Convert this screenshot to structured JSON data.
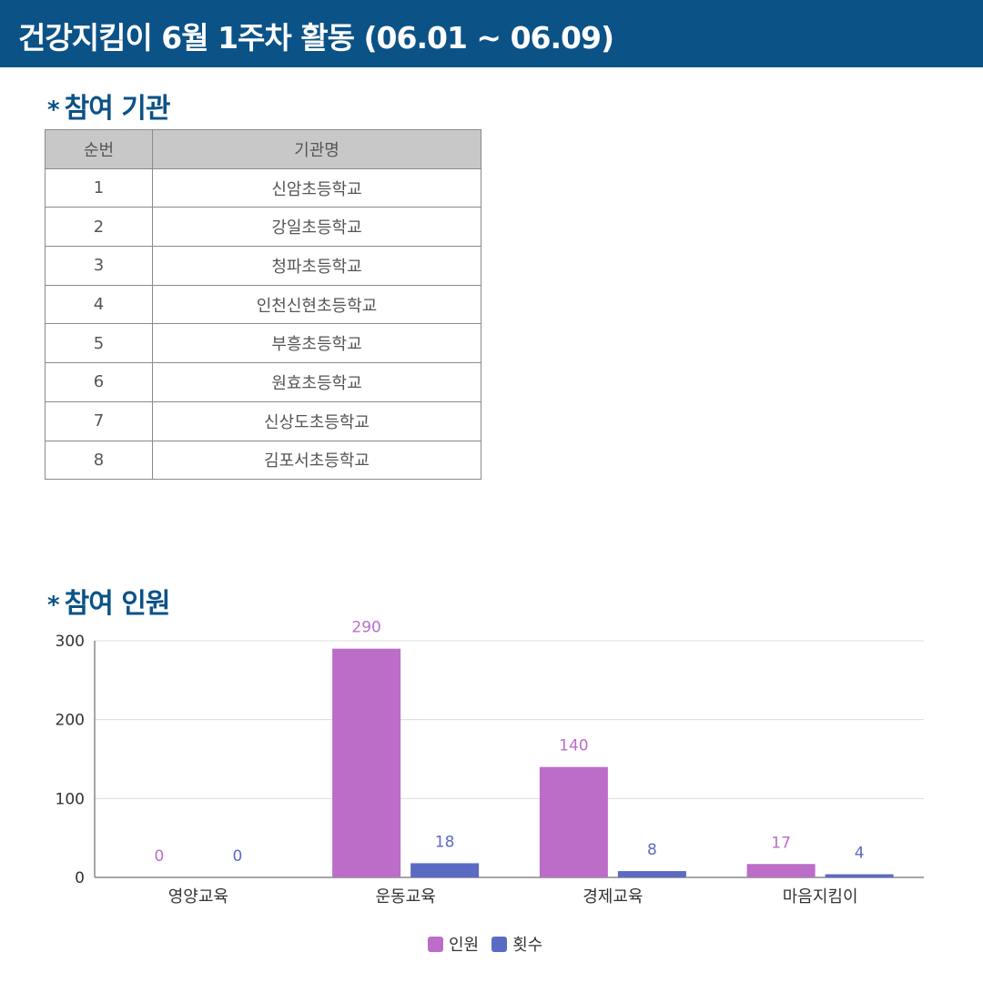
{
  "header": {
    "title": "건강지킴이 6월 1주차 활동 (06.01 ~ 06.09)"
  },
  "sections": {
    "orgs": {
      "mark": "*",
      "title": "참여 기관"
    },
    "people": {
      "mark": "*",
      "title": "참여 인원"
    }
  },
  "org_table": {
    "headers": [
      "순번",
      "기관명"
    ],
    "rows": [
      [
        "1",
        "신암초등학교"
      ],
      [
        "2",
        "강일초등학교"
      ],
      [
        "3",
        "청파초등학교"
      ],
      [
        "4",
        "인천신현초등학교"
      ],
      [
        "5",
        "부흥초등학교"
      ],
      [
        "6",
        "원효초등학교"
      ],
      [
        "7",
        "신상도초등학교"
      ],
      [
        "8",
        "김포서초등학교"
      ]
    ]
  },
  "chart_data": {
    "type": "bar",
    "categories": [
      "영양교육",
      "운동교육",
      "경제교육",
      "마음지킴이"
    ],
    "series": [
      {
        "name": "인원",
        "values": [
          0,
          290,
          140,
          17
        ],
        "color": "#bb6dc8"
      },
      {
        "name": "횟수",
        "values": [
          0,
          18,
          8,
          4
        ],
        "color": "#5b6bc4"
      }
    ],
    "ylim": [
      0,
      300
    ],
    "yticks": [
      0,
      100,
      200,
      300
    ],
    "grid": true,
    "legend": "bottom-center",
    "data_labels": true
  }
}
